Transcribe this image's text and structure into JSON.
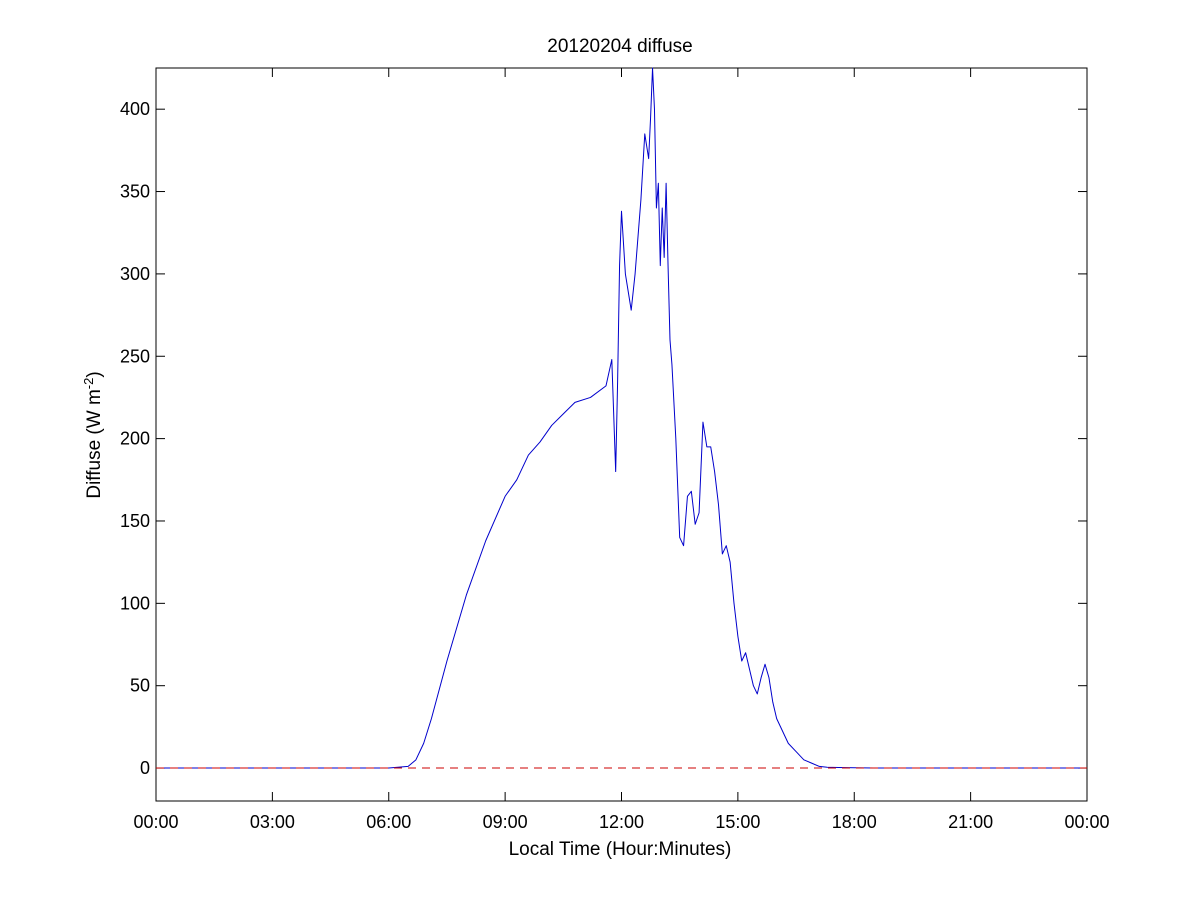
{
  "chart_data": {
    "type": "line",
    "title": "20120204 diffuse",
    "xlabel": "Local Time (Hour:Minutes)",
    "ylabel_main": "Diffuse (W m",
    "ylabel_sup": "-2",
    "ylabel_end": ")",
    "xlim": [
      0,
      24
    ],
    "ylim": [
      -20,
      425
    ],
    "x_ticks": [
      0,
      3,
      6,
      9,
      12,
      15,
      18,
      21,
      24
    ],
    "x_tick_labels": [
      "00:00",
      "03:00",
      "06:00",
      "09:00",
      "12:00",
      "15:00",
      "18:00",
      "21:00",
      "00:00"
    ],
    "y_ticks": [
      0,
      50,
      100,
      150,
      200,
      250,
      300,
      350,
      400
    ],
    "y_tick_labels": [
      "0",
      "50",
      "100",
      "150",
      "200",
      "250",
      "300",
      "350",
      "400"
    ],
    "grid": false,
    "series": [
      {
        "color": "#0000cc",
        "style": "solid",
        "x": [
          0,
          1,
          2,
          3,
          4,
          5,
          6,
          6.5,
          6.7,
          6.9,
          7.1,
          7.5,
          8.0,
          8.5,
          9.0,
          9.3,
          9.6,
          9.9,
          10.2,
          10.5,
          10.8,
          11.2,
          11.6,
          11.75,
          11.85,
          11.9,
          11.95,
          12.0,
          12.1,
          12.25,
          12.35,
          12.5,
          12.6,
          12.7,
          12.75,
          12.8,
          12.85,
          12.9,
          12.95,
          13.0,
          13.05,
          13.1,
          13.15,
          13.2,
          13.25,
          13.3,
          13.4,
          13.5,
          13.6,
          13.7,
          13.8,
          13.9,
          14.0,
          14.1,
          14.2,
          14.3,
          14.4,
          14.5,
          14.6,
          14.7,
          14.8,
          14.9,
          15.0,
          15.1,
          15.2,
          15.3,
          15.4,
          15.5,
          15.6,
          15.7,
          15.8,
          15.9,
          16.0,
          16.1,
          16.2,
          16.3,
          16.5,
          16.7,
          16.9,
          17.1,
          17.3,
          17.6,
          18.0,
          18.5,
          19,
          20,
          21,
          22,
          23,
          24
        ],
        "y": [
          0,
          0,
          0,
          0,
          0,
          0,
          0,
          1,
          5,
          15,
          30,
          65,
          105,
          138,
          165,
          175,
          190,
          198,
          208,
          215,
          222,
          225,
          232,
          248,
          180,
          235,
          305,
          338,
          300,
          278,
          300,
          345,
          385,
          370,
          395,
          425,
          400,
          340,
          355,
          305,
          340,
          310,
          355,
          305,
          260,
          245,
          200,
          140,
          135,
          165,
          168,
          148,
          155,
          210,
          195,
          195,
          180,
          160,
          130,
          135,
          125,
          100,
          80,
          65,
          70,
          60,
          50,
          45,
          55,
          63,
          55,
          40,
          30,
          25,
          20,
          15,
          10,
          5,
          3,
          1,
          0.5,
          0.3,
          0.2,
          0,
          0,
          0,
          0,
          0,
          0,
          0
        ]
      },
      {
        "color": "#cc0000",
        "style": "dashed",
        "x": [
          0,
          24
        ],
        "y": [
          0,
          0
        ]
      }
    ]
  }
}
